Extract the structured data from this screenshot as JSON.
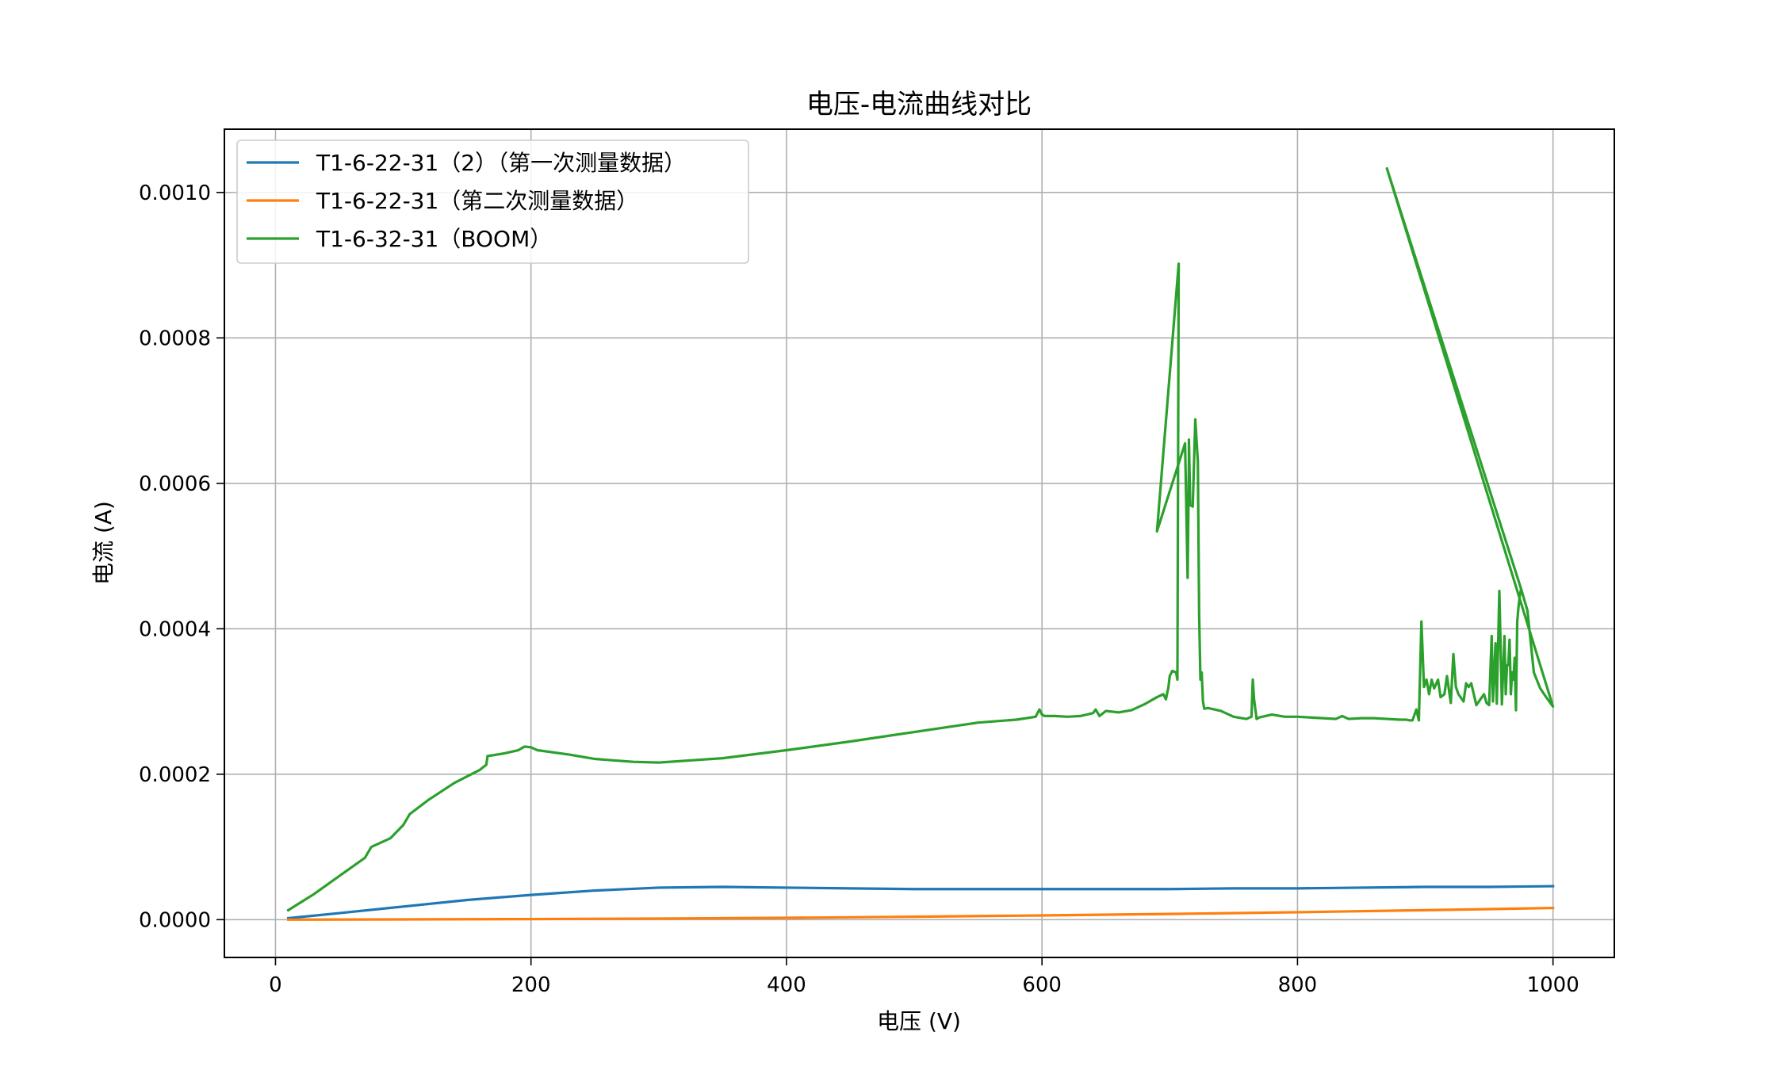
{
  "chart_data": {
    "type": "line",
    "title": "电压-电流曲线对比",
    "xlabel": "电压 (V)",
    "ylabel": "电流 (A)",
    "xlim": [
      -40,
      1048
    ],
    "ylim": [
      -5.2e-05,
      0.001087
    ],
    "xticks": [
      0,
      200,
      400,
      600,
      800,
      1000
    ],
    "xtick_labels": [
      "0",
      "200",
      "400",
      "600",
      "800",
      "1000"
    ],
    "yticks": [
      0.0,
      0.0002,
      0.0004,
      0.0006,
      0.0008,
      0.001
    ],
    "ytick_labels": [
      "0.0000",
      "0.0002",
      "0.0004",
      "0.0006",
      "0.0008",
      "0.0010"
    ],
    "grid": true,
    "legend_position": "top-left",
    "series": [
      {
        "name": "T1-6-22-31（2）（第一次测量数据）",
        "color": "#1f77b4",
        "x": [
          10,
          50,
          100,
          150,
          200,
          250,
          300,
          350,
          400,
          450,
          500,
          550,
          600,
          650,
          700,
          750,
          800,
          850,
          900,
          950,
          1000
        ],
        "y": [
          2e-06,
          9e-06,
          1.8e-05,
          2.7e-05,
          3.4e-05,
          4e-05,
          4.4e-05,
          4.5e-05,
          4.4e-05,
          4.3e-05,
          4.2e-05,
          4.2e-05,
          4.2e-05,
          4.2e-05,
          4.2e-05,
          4.3e-05,
          4.3e-05,
          4.4e-05,
          4.5e-05,
          4.5e-05,
          4.6e-05
        ]
      },
      {
        "name": "T1-6-22-31（第二次测量数据）",
        "color": "#ff7f0e",
        "x": [
          10,
          100,
          200,
          300,
          400,
          500,
          600,
          700,
          800,
          900,
          1000
        ],
        "y": [
          0.0,
          3e-07,
          8e-07,
          1.5e-06,
          2.5e-06,
          4e-06,
          5.8e-06,
          7.8e-06,
          1.02e-05,
          1.3e-05,
          1.6e-05
        ]
      },
      {
        "name": "T1-6-32-31（BOOM）",
        "color": "#2ca02c",
        "x": [
          10,
          30,
          50,
          70,
          75,
          90,
          100,
          105,
          120,
          140,
          160,
          165,
          166,
          170,
          180,
          190,
          195,
          200,
          205,
          230,
          250,
          280,
          300,
          350,
          400,
          450,
          500,
          550,
          580,
          595,
          598,
          600,
          602,
          610,
          620,
          630,
          640,
          642,
          645,
          650,
          660,
          670,
          680,
          690,
          695,
          697,
          699,
          700,
          702,
          705,
          706,
          707,
          690,
          690,
          712,
          714,
          715,
          715,
          716,
          718,
          720,
          720,
          722,
          723,
          724,
          725,
          726,
          727,
          730,
          740,
          750,
          760,
          764,
          765,
          766,
          768,
          770,
          780,
          790,
          800,
          810,
          820,
          830,
          835,
          840,
          850,
          860,
          870,
          880,
          885,
          888,
          890,
          893,
          895,
          897,
          899,
          901,
          903,
          905,
          907,
          910,
          912,
          915,
          917,
          920,
          922,
          924,
          926,
          928,
          930,
          932,
          934,
          936,
          938,
          940,
          942,
          944,
          946,
          948,
          950,
          952,
          953,
          955,
          956,
          958,
          960,
          962,
          963,
          964,
          965,
          966,
          967,
          968,
          969,
          970,
          971,
          972,
          973,
          974,
          975,
          980,
          985,
          990,
          995,
          1000,
          870,
          975,
          980
        ],
        "y": [
          1.3e-05,
          3.5e-05,
          6e-05,
          8.5e-05,
          0.0001,
          0.000112,
          0.00013,
          0.000145,
          0.000165,
          0.000188,
          0.000206,
          0.000213,
          0.000225,
          0.000226,
          0.000229,
          0.000233,
          0.000238,
          0.000237,
          0.000233,
          0.000227,
          0.000221,
          0.000217,
          0.000216,
          0.000222,
          0.000233,
          0.000245,
          0.000258,
          0.000271,
          0.000275,
          0.000279,
          0.000289,
          0.000282,
          0.00028,
          0.00028,
          0.000279,
          0.00028,
          0.000284,
          0.000289,
          0.00028,
          0.000287,
          0.000285,
          0.000288,
          0.000296,
          0.000306,
          0.00031,
          0.000303,
          0.00032,
          0.000335,
          0.000342,
          0.00034,
          0.00033,
          0.000902,
          0.000534,
          0.000534,
          0.000655,
          0.00047,
          0.00063,
          0.00066,
          0.00057,
          0.000568,
          0.000688,
          0.000688,
          0.00063,
          0.00042,
          0.00033,
          0.00034,
          0.0003,
          0.00029,
          0.000291,
          0.000287,
          0.000279,
          0.000276,
          0.000279,
          0.00033,
          0.000303,
          0.000276,
          0.000278,
          0.000282,
          0.000279,
          0.000279,
          0.000278,
          0.000277,
          0.000276,
          0.00028,
          0.000276,
          0.000277,
          0.000277,
          0.000276,
          0.000275,
          0.000275,
          0.000274,
          0.000274,
          0.000289,
          0.000274,
          0.00041,
          0.00032,
          0.00033,
          0.00031,
          0.00033,
          0.000318,
          0.00033,
          0.000306,
          0.00031,
          0.000335,
          0.000298,
          0.000365,
          0.00032,
          0.00031,
          0.000305,
          0.0003,
          0.000325,
          0.00032,
          0.000325,
          0.00031,
          0.000295,
          0.0003,
          0.000305,
          0.00031,
          0.000298,
          0.000295,
          0.00039,
          0.0003,
          0.00038,
          0.000297,
          0.000452,
          0.000296,
          0.00039,
          0.00031,
          0.00035,
          0.00035,
          0.000385,
          0.00031,
          0.00034,
          0.00033,
          0.00036,
          0.000288,
          0.00041,
          0.00043,
          0.000445,
          0.000455,
          0.000425,
          0.00034,
          0.000318,
          0.000305,
          0.000293,
          0.001033,
          0.000455,
          0.000425
        ]
      }
    ]
  }
}
